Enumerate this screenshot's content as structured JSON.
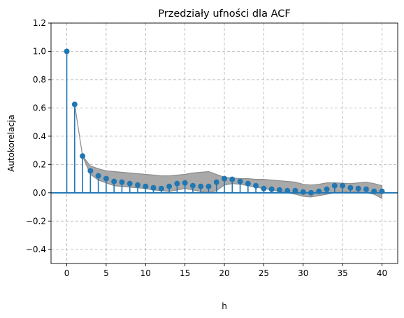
{
  "chart_data": {
    "type": "stem",
    "title": "Przedziały ufności dla ACF",
    "xlabel": "h",
    "ylabel": "Autokorelacja",
    "xlim": [
      -2,
      42
    ],
    "ylim": [
      -0.5,
      1.2
    ],
    "xticks": [
      0,
      5,
      10,
      15,
      20,
      25,
      30,
      35,
      40
    ],
    "yticks": [
      -0.4,
      -0.2,
      0.0,
      0.2,
      0.4,
      0.6,
      0.8,
      1.0,
      1.2
    ],
    "ytick_labels": [
      "−0.4",
      "−0.2",
      "0.0",
      "0.2",
      "0.4",
      "0.6",
      "0.8",
      "1.0",
      "1.2"
    ],
    "grid": true,
    "series": [
      {
        "x": [
          0,
          1,
          2,
          3,
          4,
          5,
          6,
          7,
          8,
          9,
          10,
          11,
          12,
          13,
          14,
          15,
          16,
          17,
          18,
          19,
          20,
          21,
          22,
          23,
          24,
          25,
          26,
          27,
          28,
          29,
          30,
          31,
          32,
          33,
          34,
          35,
          36,
          37,
          38,
          39,
          40
        ],
        "values": [
          1.0,
          0.625,
          0.26,
          0.155,
          0.12,
          0.1,
          0.08,
          0.075,
          0.065,
          0.055,
          0.045,
          0.035,
          0.03,
          0.045,
          0.065,
          0.07,
          0.05,
          0.045,
          0.045,
          0.075,
          0.1,
          0.095,
          0.08,
          0.065,
          0.05,
          0.03,
          0.025,
          0.02,
          0.015,
          0.015,
          0.005,
          0.0,
          0.01,
          0.025,
          0.05,
          0.05,
          0.035,
          0.03,
          0.025,
          0.01,
          0.01
        ]
      }
    ],
    "confidence_band": {
      "x": [
        1,
        2,
        3,
        4,
        5,
        6,
        7,
        8,
        9,
        10,
        11,
        12,
        13,
        14,
        15,
        16,
        17,
        18,
        19,
        20,
        21,
        22,
        23,
        24,
        25,
        26,
        27,
        28,
        29,
        30,
        31,
        32,
        33,
        34,
        35,
        36,
        37,
        38,
        39,
        40
      ],
      "upper": [
        0.625,
        0.26,
        0.19,
        0.17,
        0.155,
        0.15,
        0.145,
        0.14,
        0.135,
        0.13,
        0.125,
        0.12,
        0.12,
        0.125,
        0.13,
        0.14,
        0.145,
        0.15,
        0.13,
        0.11,
        0.105,
        0.1,
        0.1,
        0.095,
        0.095,
        0.09,
        0.085,
        0.08,
        0.075,
        0.06,
        0.055,
        0.06,
        0.07,
        0.07,
        0.068,
        0.065,
        0.07,
        0.075,
        0.065,
        0.05
      ],
      "lower": [
        0.625,
        0.26,
        0.13,
        0.09,
        0.07,
        0.05,
        0.045,
        0.04,
        0.035,
        0.03,
        0.02,
        0.015,
        0.01,
        0.02,
        0.03,
        0.02,
        0.01,
        0.0,
        0.015,
        0.055,
        0.065,
        0.06,
        0.05,
        0.04,
        0.03,
        0.02,
        0.01,
        0.0,
        -0.01,
        -0.025,
        -0.03,
        -0.02,
        -0.01,
        0.0,
        0.005,
        0.01,
        0.005,
        0.0,
        -0.01,
        -0.04
      ]
    },
    "colors": {
      "stem": "#1f77b4",
      "marker": "#1f77b4",
      "baseline": "#1f77b4",
      "band_fill": "#a9a9a9",
      "band_edge": "#8c8c8c"
    }
  }
}
